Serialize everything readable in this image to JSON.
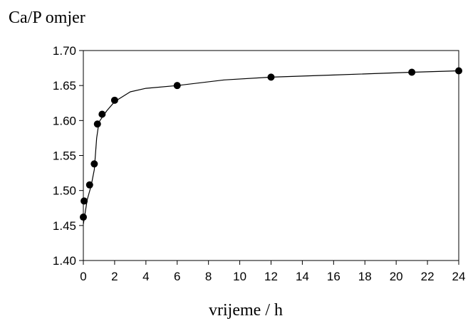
{
  "chart_data": {
    "type": "scatter",
    "ylabel": "Ca/P omjer",
    "xlabel": "vrijeme / h",
    "xlim": [
      0,
      24
    ],
    "ylim": [
      1.4,
      1.7
    ],
    "x_ticks": [
      "0",
      "2",
      "4",
      "6",
      "8",
      "10",
      "12",
      "14",
      "16",
      "18",
      "20",
      "22",
      "24"
    ],
    "y_ticks": [
      "1.40",
      "1.45",
      "1.50",
      "1.55",
      "1.60",
      "1.65",
      "1.70"
    ],
    "grid": false,
    "series": [
      {
        "points": [
          {
            "x": 0.0,
            "y": 1.462
          },
          {
            "x": 0.05,
            "y": 1.485
          },
          {
            "x": 0.4,
            "y": 1.508
          },
          {
            "x": 0.7,
            "y": 1.538
          },
          {
            "x": 0.9,
            "y": 1.595
          },
          {
            "x": 1.2,
            "y": 1.609
          },
          {
            "x": 2.0,
            "y": 1.629
          },
          {
            "x": 6.0,
            "y": 1.65
          },
          {
            "x": 12.0,
            "y": 1.662
          },
          {
            "x": 21.0,
            "y": 1.669
          },
          {
            "x": 24.0,
            "y": 1.671
          }
        ]
      }
    ],
    "fit_curve": [
      {
        "x": 0.0,
        "y": 1.452
      },
      {
        "x": 0.25,
        "y": 1.487
      },
      {
        "x": 0.5,
        "y": 1.507
      },
      {
        "x": 0.7,
        "y": 1.53
      },
      {
        "x": 0.85,
        "y": 1.575
      },
      {
        "x": 1.0,
        "y": 1.598
      },
      {
        "x": 1.5,
        "y": 1.614
      },
      {
        "x": 2.0,
        "y": 1.627
      },
      {
        "x": 3.0,
        "y": 1.641
      },
      {
        "x": 4.0,
        "y": 1.646
      },
      {
        "x": 6.0,
        "y": 1.65
      },
      {
        "x": 9.0,
        "y": 1.658
      },
      {
        "x": 12.0,
        "y": 1.662
      },
      {
        "x": 16.0,
        "y": 1.665
      },
      {
        "x": 21.0,
        "y": 1.669
      },
      {
        "x": 24.0,
        "y": 1.671
      }
    ],
    "colors": {
      "marker": "#000000",
      "line": "#000000",
      "frame": "#000000"
    }
  }
}
